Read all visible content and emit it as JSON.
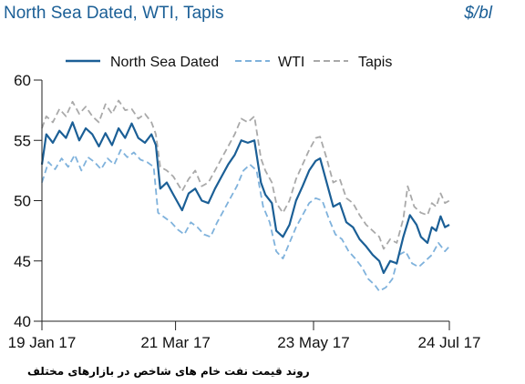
{
  "header": {
    "title": "North Sea Dated, WTI, Tapis",
    "unit": "$/bl"
  },
  "caption": "روند قیمت نفت خام های شاخص در بازارهای مختلف",
  "chart_data": {
    "type": "line",
    "title": "North Sea Dated, WTI, Tapis",
    "ylabel": "$/bl",
    "xlabel": "",
    "ylim": [
      40,
      60
    ],
    "yticks": [
      "40",
      "45",
      "50",
      "55",
      "60"
    ],
    "xlim": [
      "2017-01-19",
      "2017-07-24"
    ],
    "xtick_labels": [
      "19 Jan 17",
      "21 Mar 17",
      "23 May 17",
      "24 Jul 17"
    ],
    "xtick_dates": [
      "2017-01-19",
      "2017-03-21",
      "2017-05-23",
      "2017-07-24"
    ],
    "grid": false,
    "legend_position": "top",
    "series": [
      {
        "name": "North Sea Dated",
        "color": "#1b5f96",
        "style": "solid",
        "points": [
          [
            "2017-01-19",
            53.0
          ],
          [
            "2017-01-21",
            55.5
          ],
          [
            "2017-01-24",
            54.8
          ],
          [
            "2017-01-27",
            55.8
          ],
          [
            "2017-01-30",
            55.2
          ],
          [
            "2017-02-02",
            56.5
          ],
          [
            "2017-02-05",
            55.0
          ],
          [
            "2017-02-08",
            56.0
          ],
          [
            "2017-02-11",
            55.5
          ],
          [
            "2017-02-14",
            54.5
          ],
          [
            "2017-02-17",
            55.6
          ],
          [
            "2017-02-20",
            54.6
          ],
          [
            "2017-02-23",
            56.0
          ],
          [
            "2017-02-26",
            55.2
          ],
          [
            "2017-03-01",
            56.4
          ],
          [
            "2017-03-04",
            55.2
          ],
          [
            "2017-03-07",
            54.8
          ],
          [
            "2017-03-10",
            55.5
          ],
          [
            "2017-03-12",
            54.6
          ],
          [
            "2017-03-14",
            51.0
          ],
          [
            "2017-03-17",
            51.5
          ],
          [
            "2017-03-20",
            50.5
          ],
          [
            "2017-03-24",
            49.2
          ],
          [
            "2017-03-27",
            50.6
          ],
          [
            "2017-03-30",
            51.0
          ],
          [
            "2017-04-02",
            50.0
          ],
          [
            "2017-04-05",
            49.8
          ],
          [
            "2017-04-08",
            51.0
          ],
          [
            "2017-04-11",
            52.0
          ],
          [
            "2017-04-14",
            53.0
          ],
          [
            "2017-04-17",
            53.8
          ],
          [
            "2017-04-20",
            55.0
          ],
          [
            "2017-04-23",
            54.8
          ],
          [
            "2017-04-26",
            55.0
          ],
          [
            "2017-04-29",
            51.5
          ],
          [
            "2017-05-01",
            50.5
          ],
          [
            "2017-05-04",
            49.8
          ],
          [
            "2017-05-06",
            47.5
          ],
          [
            "2017-05-09",
            47.0
          ],
          [
            "2017-05-12",
            48.0
          ],
          [
            "2017-05-15",
            50.0
          ],
          [
            "2017-05-18",
            51.2
          ],
          [
            "2017-05-21",
            52.5
          ],
          [
            "2017-05-24",
            53.3
          ],
          [
            "2017-05-26",
            53.5
          ],
          [
            "2017-05-29",
            51.5
          ],
          [
            "2017-06-01",
            49.5
          ],
          [
            "2017-06-04",
            49.8
          ],
          [
            "2017-06-07",
            48.2
          ],
          [
            "2017-06-10",
            47.8
          ],
          [
            "2017-06-13",
            46.8
          ],
          [
            "2017-06-16",
            46.2
          ],
          [
            "2017-06-19",
            45.5
          ],
          [
            "2017-06-22",
            45.0
          ],
          [
            "2017-06-24",
            44.0
          ],
          [
            "2017-06-27",
            45.0
          ],
          [
            "2017-06-30",
            44.8
          ],
          [
            "2017-07-03",
            47.0
          ],
          [
            "2017-07-06",
            48.8
          ],
          [
            "2017-07-09",
            48.0
          ],
          [
            "2017-07-11",
            47.0
          ],
          [
            "2017-07-14",
            46.5
          ],
          [
            "2017-07-16",
            47.8
          ],
          [
            "2017-07-18",
            47.5
          ],
          [
            "2017-07-20",
            48.7
          ],
          [
            "2017-07-22",
            47.8
          ],
          [
            "2017-07-24",
            48.0
          ]
        ]
      },
      {
        "name": "WTI",
        "color": "#7fb2dc",
        "style": "dashed",
        "points": [
          [
            "2017-01-19",
            51.5
          ],
          [
            "2017-01-22",
            53.2
          ],
          [
            "2017-01-25",
            52.6
          ],
          [
            "2017-01-28",
            53.5
          ],
          [
            "2017-01-31",
            52.8
          ],
          [
            "2017-02-03",
            53.8
          ],
          [
            "2017-02-06",
            52.5
          ],
          [
            "2017-02-09",
            53.6
          ],
          [
            "2017-02-12",
            53.2
          ],
          [
            "2017-02-15",
            52.6
          ],
          [
            "2017-02-18",
            53.5
          ],
          [
            "2017-02-21",
            53.0
          ],
          [
            "2017-02-24",
            54.2
          ],
          [
            "2017-02-27",
            53.6
          ],
          [
            "2017-03-02",
            54.0
          ],
          [
            "2017-03-05",
            53.4
          ],
          [
            "2017-03-08",
            53.2
          ],
          [
            "2017-03-11",
            52.8
          ],
          [
            "2017-03-13",
            49.0
          ],
          [
            "2017-03-16",
            48.6
          ],
          [
            "2017-03-19",
            48.2
          ],
          [
            "2017-03-22",
            47.6
          ],
          [
            "2017-03-25",
            47.2
          ],
          [
            "2017-03-28",
            48.2
          ],
          [
            "2017-03-31",
            47.8
          ],
          [
            "2017-04-03",
            47.2
          ],
          [
            "2017-04-06",
            47.0
          ],
          [
            "2017-04-09",
            48.2
          ],
          [
            "2017-04-12",
            49.2
          ],
          [
            "2017-04-15",
            50.2
          ],
          [
            "2017-04-18",
            51.2
          ],
          [
            "2017-04-21",
            52.5
          ],
          [
            "2017-04-24",
            53.0
          ],
          [
            "2017-04-27",
            52.5
          ],
          [
            "2017-04-30",
            49.5
          ],
          [
            "2017-05-03",
            48.2
          ],
          [
            "2017-05-06",
            45.8
          ],
          [
            "2017-05-09",
            45.2
          ],
          [
            "2017-05-12",
            46.5
          ],
          [
            "2017-05-15",
            47.8
          ],
          [
            "2017-05-18",
            48.8
          ],
          [
            "2017-05-21",
            49.8
          ],
          [
            "2017-05-24",
            50.2
          ],
          [
            "2017-05-27",
            50.0
          ],
          [
            "2017-05-30",
            48.5
          ],
          [
            "2017-06-02",
            47.2
          ],
          [
            "2017-06-05",
            46.8
          ],
          [
            "2017-06-08",
            45.8
          ],
          [
            "2017-06-11",
            45.2
          ],
          [
            "2017-06-14",
            44.5
          ],
          [
            "2017-06-17",
            43.5
          ],
          [
            "2017-06-20",
            43.0
          ],
          [
            "2017-06-22",
            42.5
          ],
          [
            "2017-06-25",
            42.8
          ],
          [
            "2017-06-28",
            43.5
          ],
          [
            "2017-07-01",
            45.5
          ],
          [
            "2017-07-04",
            45.8
          ],
          [
            "2017-07-07",
            44.8
          ],
          [
            "2017-07-10",
            44.5
          ],
          [
            "2017-07-13",
            45.0
          ],
          [
            "2017-07-16",
            45.5
          ],
          [
            "2017-07-19",
            46.5
          ],
          [
            "2017-07-22",
            45.8
          ],
          [
            "2017-07-24",
            46.2
          ]
        ]
      },
      {
        "name": "Tapis",
        "color": "#a9a9a9",
        "style": "dashed",
        "points": [
          [
            "2017-01-19",
            56.0
          ],
          [
            "2017-01-21",
            57.0
          ],
          [
            "2017-01-24",
            56.5
          ],
          [
            "2017-01-27",
            57.6
          ],
          [
            "2017-01-30",
            57.0
          ],
          [
            "2017-02-02",
            58.2
          ],
          [
            "2017-02-05",
            57.2
          ],
          [
            "2017-02-08",
            57.8
          ],
          [
            "2017-02-11",
            57.0
          ],
          [
            "2017-02-14",
            56.5
          ],
          [
            "2017-02-17",
            58.0
          ],
          [
            "2017-02-20",
            57.2
          ],
          [
            "2017-02-23",
            58.3
          ],
          [
            "2017-02-26",
            57.5
          ],
          [
            "2017-03-01",
            57.6
          ],
          [
            "2017-03-04",
            56.8
          ],
          [
            "2017-03-07",
            57.2
          ],
          [
            "2017-03-10",
            56.5
          ],
          [
            "2017-03-12",
            55.5
          ],
          [
            "2017-03-14",
            52.8
          ],
          [
            "2017-03-17",
            52.5
          ],
          [
            "2017-03-20",
            52.0
          ],
          [
            "2017-03-24",
            50.8
          ],
          [
            "2017-03-27",
            51.8
          ],
          [
            "2017-03-30",
            52.5
          ],
          [
            "2017-04-02",
            51.2
          ],
          [
            "2017-04-05",
            51.5
          ],
          [
            "2017-04-08",
            52.5
          ],
          [
            "2017-04-11",
            53.5
          ],
          [
            "2017-04-14",
            54.5
          ],
          [
            "2017-04-17",
            55.5
          ],
          [
            "2017-04-20",
            56.8
          ],
          [
            "2017-04-23",
            56.5
          ],
          [
            "2017-04-26",
            57.0
          ],
          [
            "2017-04-29",
            53.5
          ],
          [
            "2017-05-01",
            52.5
          ],
          [
            "2017-05-04",
            51.5
          ],
          [
            "2017-05-06",
            49.8
          ],
          [
            "2017-05-09",
            49.0
          ],
          [
            "2017-05-12",
            50.0
          ],
          [
            "2017-05-15",
            51.8
          ],
          [
            "2017-05-18",
            53.0
          ],
          [
            "2017-05-21",
            54.2
          ],
          [
            "2017-05-24",
            55.2
          ],
          [
            "2017-05-26",
            55.3
          ],
          [
            "2017-05-29",
            53.5
          ],
          [
            "2017-06-01",
            51.5
          ],
          [
            "2017-06-04",
            51.8
          ],
          [
            "2017-06-07",
            50.2
          ],
          [
            "2017-06-10",
            49.8
          ],
          [
            "2017-06-13",
            48.8
          ],
          [
            "2017-06-16",
            48.0
          ],
          [
            "2017-06-19",
            47.5
          ],
          [
            "2017-06-22",
            47.0
          ],
          [
            "2017-06-24",
            46.0
          ],
          [
            "2017-06-27",
            46.8
          ],
          [
            "2017-06-30",
            46.5
          ],
          [
            "2017-07-03",
            48.5
          ],
          [
            "2017-07-05",
            51.2
          ],
          [
            "2017-07-08",
            49.5
          ],
          [
            "2017-07-11",
            49.0
          ],
          [
            "2017-07-14",
            48.8
          ],
          [
            "2017-07-16",
            49.8
          ],
          [
            "2017-07-18",
            49.5
          ],
          [
            "2017-07-20",
            50.6
          ],
          [
            "2017-07-22",
            49.8
          ],
          [
            "2017-07-24",
            50.0
          ]
        ]
      }
    ]
  }
}
